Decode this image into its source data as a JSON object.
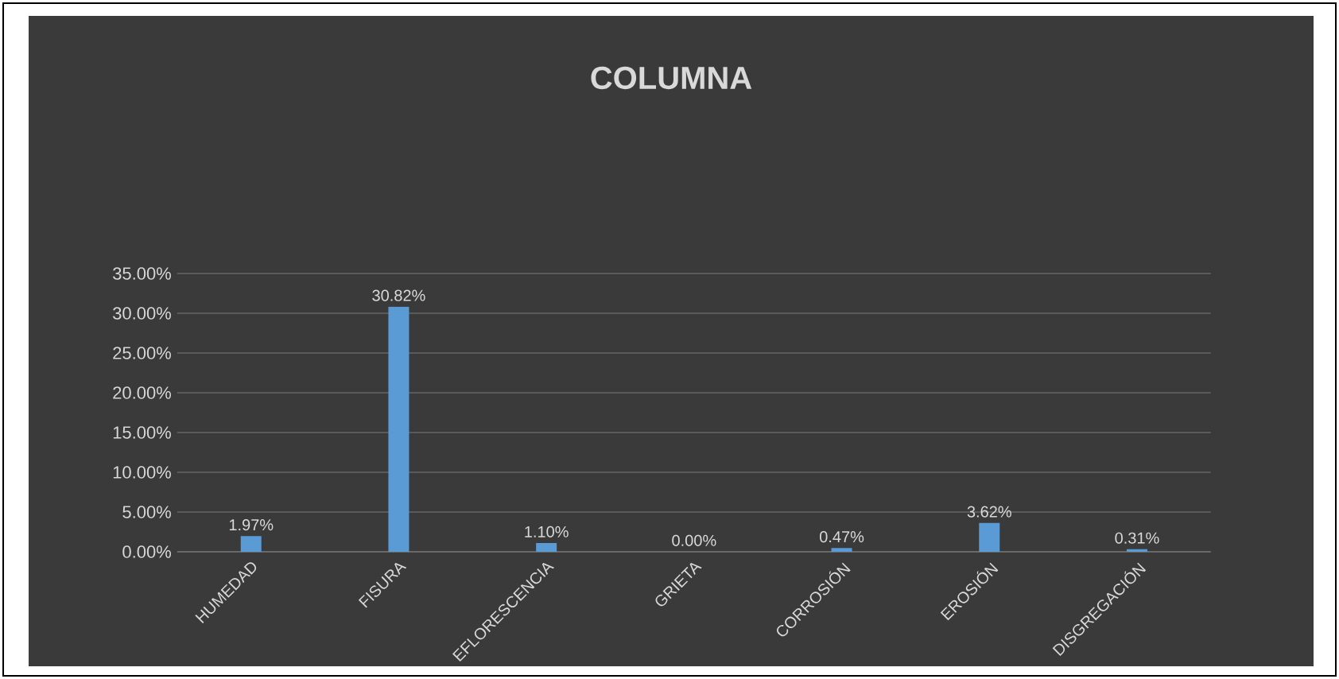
{
  "chart_data": {
    "type": "bar",
    "title": "COLUMNA",
    "categories": [
      "HUMEDAD",
      "FISURA",
      "EFLORESCENCIA",
      "GRIETA",
      "CORROSIÓN",
      "EROSIÓN",
      "DISGREGACIÓN"
    ],
    "values": [
      1.97,
      30.82,
      1.1,
      0.0,
      0.47,
      3.62,
      0.31
    ],
    "value_labels": [
      "1.97%",
      "30.82%",
      "1.10%",
      "0.00%",
      "0.47%",
      "3.62%",
      "0.31%"
    ],
    "color": "#5b9bd5",
    "ylim": [
      0,
      35
    ],
    "yticks": [
      {
        "value": 0,
        "label": "0.00%"
      },
      {
        "value": 5,
        "label": "5.00%"
      },
      {
        "value": 10,
        "label": "10.00%"
      },
      {
        "value": 15,
        "label": "15.00%"
      },
      {
        "value": 20,
        "label": "20.00%"
      },
      {
        "value": 25,
        "label": "25.00%"
      },
      {
        "value": 30,
        "label": "30.00%"
      },
      {
        "value": 35,
        "label": "35.00%"
      }
    ],
    "grid": "y"
  }
}
